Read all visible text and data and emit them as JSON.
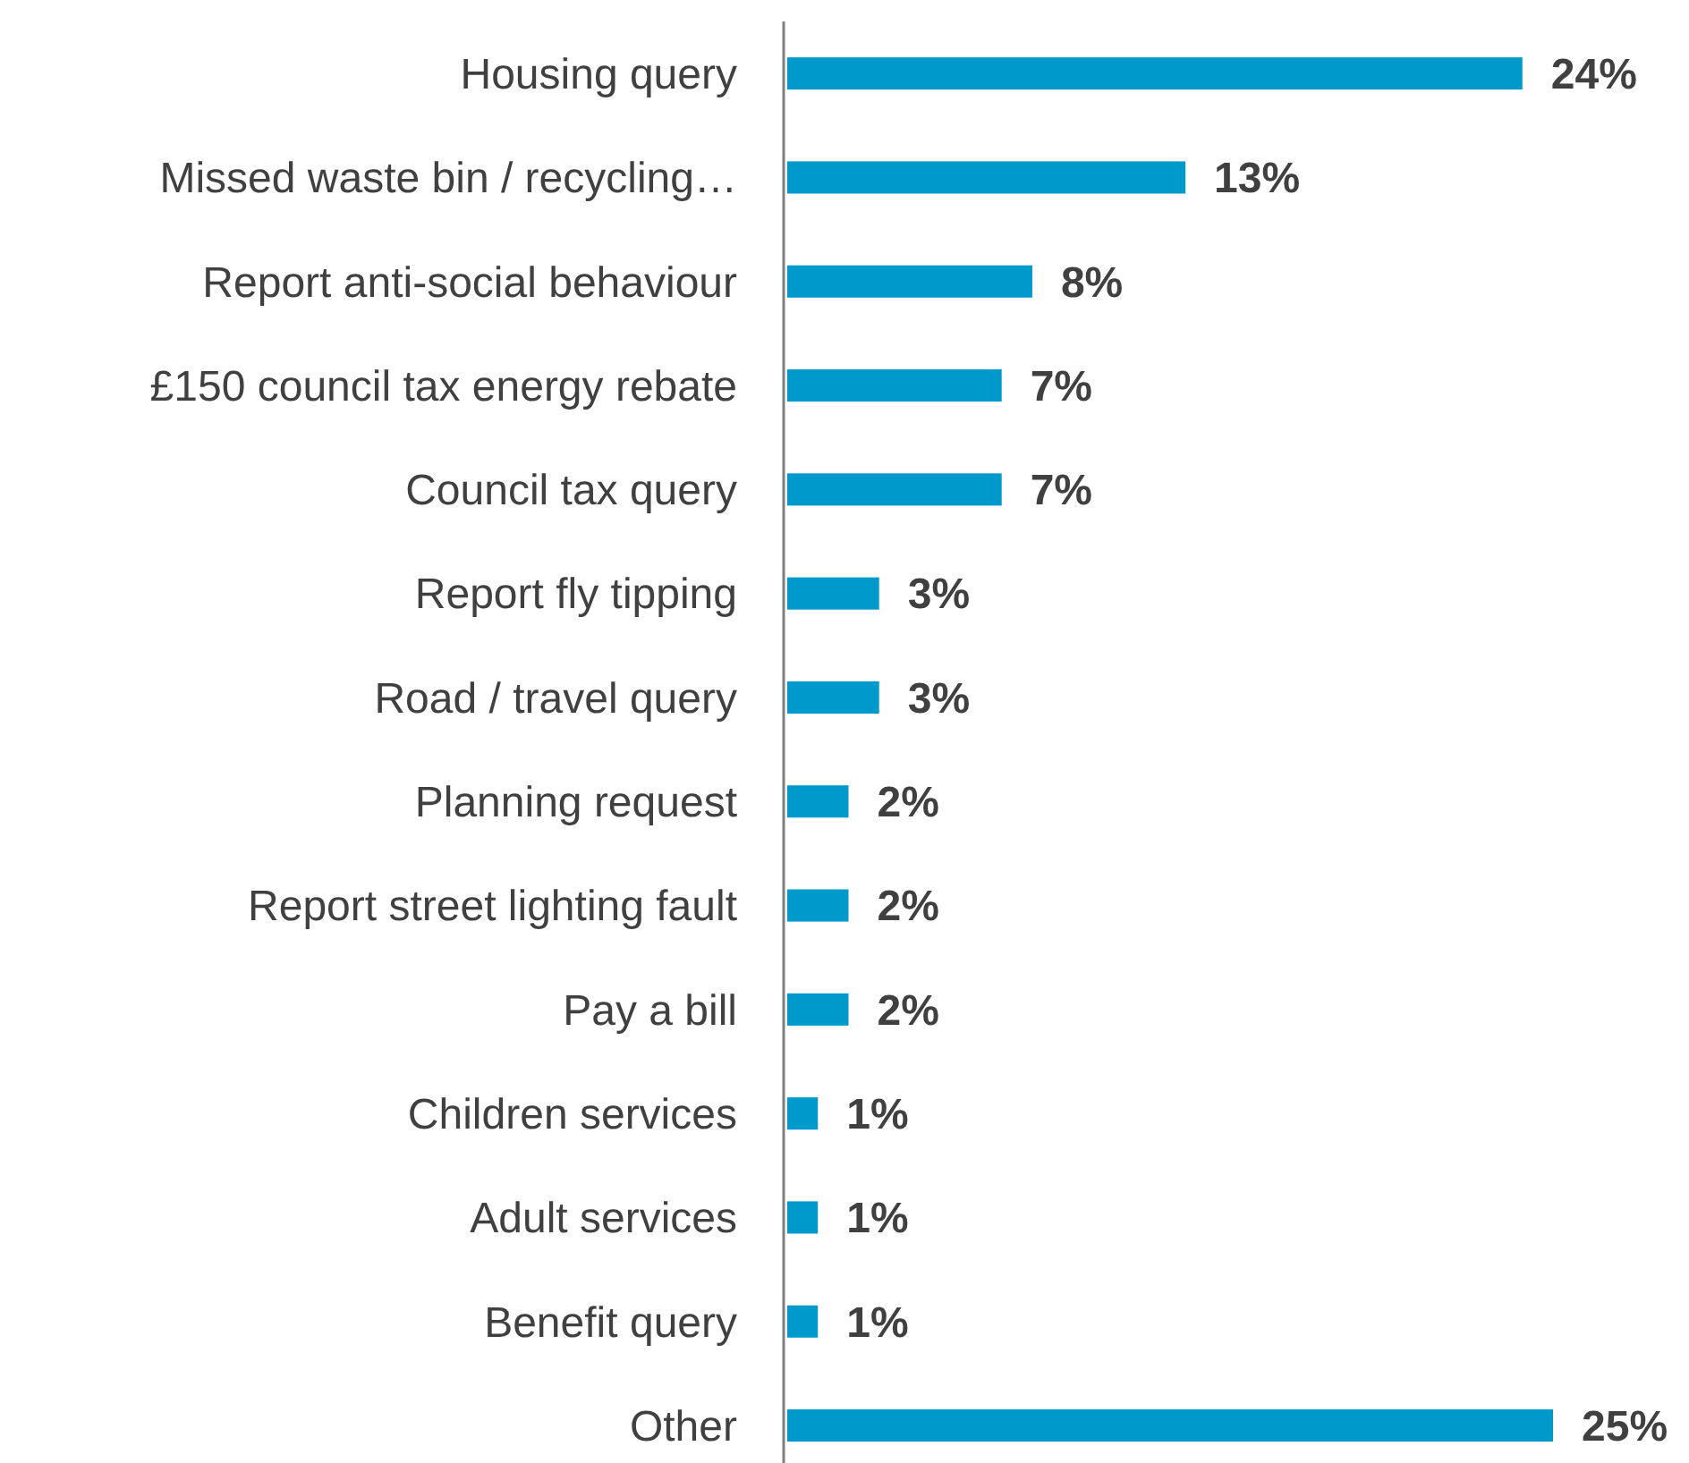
{
  "chart_data": {
    "type": "bar",
    "orientation": "horizontal",
    "categories": [
      "Housing query",
      "Missed waste bin / recycling…",
      "Report anti-social behaviour",
      "£150 council tax energy rebate",
      "Council tax query",
      "Report fly tipping",
      "Road / travel query",
      "Planning request",
      "Report street lighting fault",
      "Pay a bill",
      "Children services",
      "Adult services",
      "Benefit query",
      "Other"
    ],
    "values": [
      24,
      13,
      8,
      7,
      7,
      3,
      3,
      2,
      2,
      2,
      1,
      1,
      1,
      25
    ],
    "value_labels": [
      "24%",
      "13%",
      "8%",
      "7%",
      "7%",
      "3%",
      "3%",
      "2%",
      "2%",
      "2%",
      "1%",
      "1%",
      "1%",
      "25%"
    ],
    "color": "#0099cc"
  }
}
